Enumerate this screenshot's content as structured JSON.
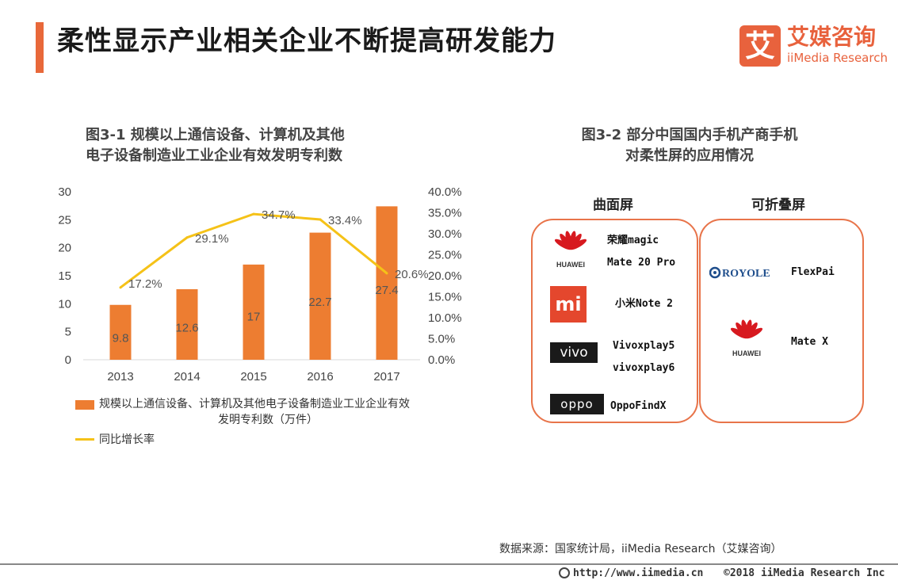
{
  "page": {
    "title": "柔性显示产业相关企业不断提高研发能力"
  },
  "logo": {
    "mark": "艾",
    "cn": "艾媒咨询",
    "en": "iiMedia Research"
  },
  "figure1": {
    "title_line1": "图3-1 规模以上通信设备、计算机及其他",
    "title_line2": "电子设备制造业工业企业有效发明专利数"
  },
  "chart_data": {
    "type": "bar+line",
    "categories": [
      "2013",
      "2014",
      "2015",
      "2016",
      "2017"
    ],
    "series": [
      {
        "name": "规模以上通信设备、计算机及其他电子设备制造业工业企业有效发明专利数（万件）",
        "type": "bar",
        "axis": "left",
        "values": [
          9.8,
          12.6,
          17,
          22.7,
          27.4
        ],
        "labels": [
          "9.8",
          "12.6",
          "17",
          "22.7",
          "27.4"
        ]
      },
      {
        "name": "同比增长率",
        "type": "line",
        "axis": "right",
        "values": [
          17.2,
          29.1,
          34.7,
          33.4,
          20.6
        ],
        "labels": [
          "17.2%",
          "29.1%",
          "34.7%",
          "33.4%",
          "20.6%"
        ]
      }
    ],
    "y_left": {
      "min": 0,
      "max": 30,
      "ticks": [
        "0",
        "5",
        "10",
        "15",
        "20",
        "25",
        "30"
      ]
    },
    "y_right": {
      "min": 0,
      "max": 40,
      "ticks": [
        "0.0%",
        "5.0%",
        "10.0%",
        "15.0%",
        "20.0%",
        "25.0%",
        "30.0%",
        "35.0%",
        "40.0%"
      ]
    },
    "legend": {
      "bar_line1": "规模以上通信设备、计算机及其他电子设备制造业工业企业有效",
      "bar_line2": "发明专利数（万件）",
      "line": "同比增长率"
    },
    "colors": {
      "bar": "#ed7d31",
      "line": "#f5c218"
    }
  },
  "figure2": {
    "title_line1": "图3-2 部分中国国内手机产商手机",
    "title_line2": "对柔性屏的应用情况",
    "curved_label": "曲面屏",
    "fold_label": "可折叠屏",
    "curved": [
      {
        "brand": "HUAWEI",
        "model1": "荣耀magic",
        "model2": "Mate 20 Pro"
      },
      {
        "brand": "mi",
        "model1": "小米Note 2"
      },
      {
        "brand": "vivo",
        "model1": "Vivoxplay5",
        "model2": "vivoxplay6"
      },
      {
        "brand": "oppo",
        "model1": "OppoFindX"
      }
    ],
    "fold": [
      {
        "brand": "ROYOLE",
        "model1": "FlexPai"
      },
      {
        "brand": "HUAWEI",
        "model1": "Mate X"
      }
    ]
  },
  "source": "数据来源：国家统计局，iiMedia Research（艾媒咨询）",
  "footer": {
    "url": "http://www.iimedia.cn",
    "copyright": "©2018  iiMedia Research  Inc"
  }
}
